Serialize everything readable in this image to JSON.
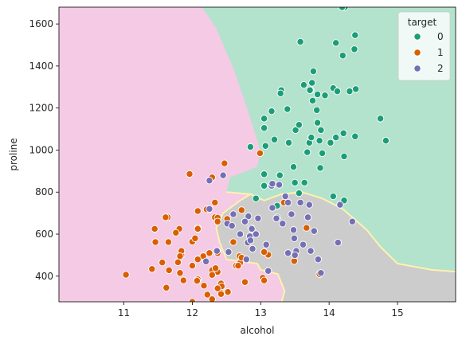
{
  "chart_data": {
    "type": "scatter",
    "title": "",
    "xlabel": "alcohol",
    "ylabel": "proline",
    "xlim": [
      10.05,
      15.85
    ],
    "ylim": [
      278,
      1680
    ],
    "x_ticks": [
      11,
      12,
      13,
      14,
      15
    ],
    "y_ticks": [
      400,
      600,
      800,
      1000,
      1200,
      1400,
      1600
    ],
    "grid": false,
    "legend": {
      "title": "target",
      "position": "top-right"
    },
    "regions": [
      {
        "class": "0",
        "color": "#b3e2cd"
      },
      {
        "class": "1",
        "color": "#f4cae4"
      },
      {
        "class": "2",
        "color": "#cccccc"
      }
    ],
    "boundary_color": "#fff2ae",
    "series": [
      {
        "name": "0",
        "color": "#1b9e77",
        "points": [
          [
            14.23,
            1680
          ],
          [
            13.2,
            1050
          ],
          [
            13.16,
            1185
          ],
          [
            14.37,
            1480
          ],
          [
            13.24,
            735
          ],
          [
            14.2,
            1450
          ],
          [
            14.39,
            1290
          ],
          [
            14.06,
            1295
          ],
          [
            14.83,
            1045
          ],
          [
            13.86,
            1045
          ],
          [
            14.1,
            1510
          ],
          [
            14.12,
            1280
          ],
          [
            13.75,
            1320
          ],
          [
            14.75,
            1150
          ],
          [
            14.38,
            1547
          ],
          [
            13.63,
            1310
          ],
          [
            14.3,
            1280
          ],
          [
            13.83,
            1130
          ],
          [
            14.19,
            1680
          ],
          [
            13.64,
            845
          ],
          [
            14.06,
            780
          ],
          [
            12.93,
            770
          ],
          [
            13.71,
            1035
          ],
          [
            12.85,
            1015
          ],
          [
            13.5,
            845
          ],
          [
            13.05,
            830
          ],
          [
            13.39,
            1195
          ],
          [
            13.3,
            1285
          ],
          [
            13.87,
            915
          ],
          [
            14.02,
            1035
          ],
          [
            13.73,
            1285
          ],
          [
            13.58,
            1515
          ],
          [
            13.68,
            990
          ],
          [
            13.76,
            1235
          ],
          [
            13.51,
            1095
          ],
          [
            13.48,
            920
          ],
          [
            13.28,
            880
          ],
          [
            13.05,
            1105
          ],
          [
            13.07,
            1020
          ],
          [
            14.22,
            760
          ],
          [
            13.56,
            795
          ],
          [
            13.41,
            1035
          ],
          [
            13.88,
            1095
          ],
          [
            13.24,
            680
          ],
          [
            13.05,
            885
          ],
          [
            14.21,
            1080
          ],
          [
            14.38,
            1065
          ],
          [
            13.9,
            985
          ],
          [
            14.1,
            1060
          ],
          [
            13.94,
            1260
          ],
          [
            13.05,
            1150
          ],
          [
            13.83,
            1265
          ],
          [
            13.82,
            1190
          ],
          [
            13.77,
            1375
          ],
          [
            13.74,
            1060
          ],
          [
            13.56,
            1120
          ],
          [
            14.22,
            970
          ],
          [
            13.29,
            1270
          ],
          [
            13.72,
            1285
          ]
        ]
      },
      {
        "name": "1",
        "color": "#d95f02",
        "points": [
          [
            12.37,
            520
          ],
          [
            12.33,
            680
          ],
          [
            12.64,
            450
          ],
          [
            13.67,
            630
          ],
          [
            12.37,
            420
          ],
          [
            12.17,
            355
          ],
          [
            12.37,
            678
          ],
          [
            13.11,
            502
          ],
          [
            12.37,
            510
          ],
          [
            13.34,
            750
          ],
          [
            12.21,
            718
          ],
          [
            12.29,
            870
          ],
          [
            13.86,
            410
          ],
          [
            13.49,
            472
          ],
          [
            12.99,
            985
          ],
          [
            11.96,
            886
          ],
          [
            11.66,
            428
          ],
          [
            13.03,
            392
          ],
          [
            11.84,
            500
          ],
          [
            12.33,
            750
          ],
          [
            12.7,
            463
          ],
          [
            12,
            278
          ],
          [
            12.72,
            714
          ],
          [
            12.08,
            630
          ],
          [
            13.05,
            515
          ],
          [
            11.84,
            520
          ],
          [
            12.67,
            450
          ],
          [
            12.16,
            495
          ],
          [
            11.65,
            562
          ],
          [
            11.64,
            680
          ],
          [
            12.08,
            625
          ],
          [
            12.08,
            480
          ],
          [
            12,
            450
          ],
          [
            12.69,
            495
          ],
          [
            12.29,
            290
          ],
          [
            11.62,
            345
          ],
          [
            12.47,
            937
          ],
          [
            11.81,
            625
          ],
          [
            12.29,
            428
          ],
          [
            12.37,
            660
          ],
          [
            12.29,
            406
          ],
          [
            12.08,
            710
          ],
          [
            12.6,
            562
          ],
          [
            12.34,
            438
          ],
          [
            11.82,
            415
          ],
          [
            12.51,
            672
          ],
          [
            12.42,
            315
          ],
          [
            12.25,
            510
          ],
          [
            12.72,
            488
          ],
          [
            12.22,
            312
          ],
          [
            11.61,
            680
          ],
          [
            11.46,
            562
          ],
          [
            12.52,
            325
          ],
          [
            11.76,
            607
          ],
          [
            11.41,
            434
          ],
          [
            12.08,
            385
          ],
          [
            11.03,
            407
          ],
          [
            11.82,
            495
          ],
          [
            12.42,
            345
          ],
          [
            12.77,
            372
          ],
          [
            12,
            564
          ],
          [
            11.45,
            625
          ],
          [
            11.56,
            465
          ],
          [
            12.42,
            365
          ],
          [
            13.05,
            380
          ],
          [
            11.87,
            380
          ],
          [
            12.07,
            378
          ],
          [
            12.43,
            352
          ],
          [
            11.79,
            466
          ],
          [
            12.37,
            342
          ],
          [
            12.04,
            580
          ]
        ]
      },
      {
        "name": "2",
        "color": "#7570b3",
        "points": [
          [
            12.86,
            630
          ],
          [
            12.88,
            530
          ],
          [
            12.81,
            560
          ],
          [
            12.7,
            600
          ],
          [
            12.51,
            650
          ],
          [
            12.6,
            695
          ],
          [
            12.25,
            720
          ],
          [
            12.53,
            515
          ],
          [
            13.49,
            580
          ],
          [
            12.84,
            590
          ],
          [
            12.93,
            600
          ],
          [
            13.36,
            780
          ],
          [
            13.52,
            520
          ],
          [
            13.62,
            550
          ],
          [
            12.25,
            855
          ],
          [
            13.16,
            830
          ],
          [
            13.88,
            415
          ],
          [
            12.87,
            625
          ],
          [
            13.32,
            650
          ],
          [
            13.08,
            550
          ],
          [
            13.5,
            500
          ],
          [
            12.79,
            480
          ],
          [
            13.11,
            425
          ],
          [
            13.23,
            675
          ],
          [
            12.58,
            640
          ],
          [
            13.17,
            725
          ],
          [
            13.84,
            480
          ],
          [
            12.45,
            880
          ],
          [
            14.34,
            660
          ],
          [
            13.48,
            620
          ],
          [
            12.36,
            520
          ],
          [
            13.69,
            680
          ],
          [
            12.85,
            570
          ],
          [
            12.96,
            675
          ],
          [
            13.78,
            615
          ],
          [
            13.73,
            520
          ],
          [
            13.45,
            695
          ],
          [
            12.82,
            685
          ],
          [
            13.58,
            750
          ],
          [
            13.4,
            510
          ],
          [
            12.2,
            470
          ],
          [
            12.77,
            660
          ],
          [
            14.16,
            740
          ],
          [
            13.71,
            740
          ],
          [
            13.4,
            750
          ],
          [
            13.27,
            835
          ],
          [
            13.17,
            840
          ],
          [
            14.13,
            560
          ]
        ]
      }
    ]
  }
}
